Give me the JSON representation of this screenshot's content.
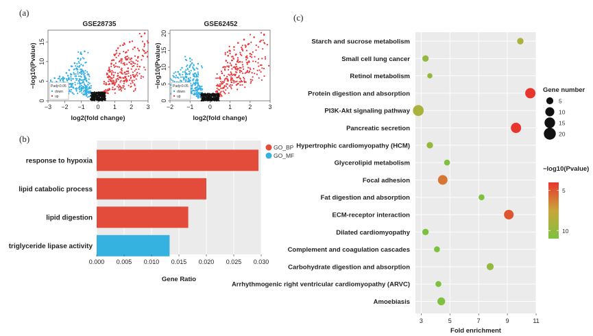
{
  "panel_labels": {
    "a": "(a)",
    "b": "(b)",
    "c": "(c)"
  },
  "chart_data": [
    {
      "panel": "(a)",
      "type": "scatter",
      "title": "GSE28735",
      "xlabel": "log2(fold change)",
      "ylabel": "−log10(Pvalue)",
      "xlim": [
        -3,
        3
      ],
      "ylim": [
        0,
        18
      ],
      "xticks": [
        "−3",
        "−2",
        "−1",
        "0",
        "1",
        "2",
        "3"
      ],
      "yticks": [
        "0",
        "5",
        "10",
        "15"
      ],
      "legend": {
        "title": "Padj<0.05",
        "items": [
          "down",
          "up"
        ]
      },
      "series": [
        {
          "name": "down",
          "color": "#33aee4",
          "points": [
            [
              -2.3,
              6.2
            ],
            [
              -2.1,
              5.2
            ],
            [
              -2.6,
              5.8
            ],
            [
              -1.9,
              7.1
            ],
            [
              -1.8,
              6.4
            ],
            [
              -1.6,
              8.8
            ],
            [
              -1.4,
              9.6
            ],
            [
              -1.2,
              10.8
            ],
            [
              -1.3,
              8.2
            ],
            [
              -1.0,
              7.4
            ],
            [
              -0.9,
              9.0
            ],
            [
              -0.8,
              6.1
            ],
            [
              -0.7,
              5.2
            ],
            [
              -0.6,
              4.1
            ],
            [
              -0.5,
              3.2
            ],
            [
              -0.4,
              2.1
            ],
            [
              -1.1,
              4.6
            ],
            [
              -1.5,
              5.6
            ],
            [
              -0.9,
              3.6
            ],
            [
              -0.7,
              2.8
            ],
            [
              -1.7,
              4.3
            ],
            [
              -2.0,
              3.9
            ],
            [
              -0.6,
              6.8
            ],
            [
              -1.0,
              11.9
            ],
            [
              -0.8,
              12.6
            ]
          ]
        },
        {
          "name": "up",
          "color": "#e8373b",
          "points": [
            [
              0.4,
              2.5
            ],
            [
              0.5,
              4.2
            ],
            [
              0.6,
              6.0
            ],
            [
              0.7,
              7.8
            ],
            [
              0.8,
              9.5
            ],
            [
              0.9,
              10.4
            ],
            [
              1.0,
              11.6
            ],
            [
              1.1,
              12.8
            ],
            [
              1.2,
              13.4
            ],
            [
              1.3,
              12.0
            ],
            [
              1.4,
              10.6
            ],
            [
              1.5,
              14.2
            ],
            [
              1.6,
              9.2
            ],
            [
              1.7,
              12.4
            ],
            [
              1.8,
              8.3
            ],
            [
              1.9,
              15.0
            ],
            [
              2.0,
              10.8
            ],
            [
              2.2,
              13.6
            ],
            [
              2.4,
              11.2
            ],
            [
              2.6,
              16.4
            ],
            [
              2.8,
              17.2
            ],
            [
              3.0,
              14.8
            ],
            [
              1.2,
              6.4
            ],
            [
              0.9,
              5.1
            ],
            [
              1.6,
              7.2
            ],
            [
              2.1,
              6.6
            ]
          ]
        },
        {
          "name": "ns",
          "color": "#111111",
          "points": [
            [
              -0.35,
              0.8
            ],
            [
              -0.2,
              0.5
            ],
            [
              0.0,
              0.3
            ],
            [
              0.2,
              0.6
            ],
            [
              0.35,
              1.0
            ],
            [
              -0.1,
              1.2
            ],
            [
              0.1,
              1.4
            ],
            [
              -0.25,
              1.6
            ],
            [
              0.3,
              1.8
            ],
            [
              0.05,
              0.9
            ]
          ]
        }
      ]
    },
    {
      "panel": "(a)",
      "type": "scatter",
      "title": "GSE62452",
      "xlabel": "log2(fold change)",
      "ylabel": "−log10(Pvalue)",
      "xlim": [
        -2,
        3
      ],
      "ylim": [
        0,
        21
      ],
      "xticks": [
        "−2",
        "−1",
        "0",
        "1",
        "2",
        "3"
      ],
      "yticks": [
        "0",
        "5",
        "10",
        "15",
        "20"
      ],
      "legend": {
        "title": "Padj<0.05",
        "items": [
          "down",
          "up"
        ]
      },
      "series": [
        {
          "name": "down",
          "color": "#33aee4",
          "points": [
            [
              -1.8,
              7.1
            ],
            [
              -1.6,
              8.6
            ],
            [
              -1.4,
              9.8
            ],
            [
              -1.2,
              8.2
            ],
            [
              -1.0,
              10.4
            ],
            [
              -0.9,
              11.2
            ],
            [
              -0.8,
              7.6
            ],
            [
              -0.7,
              6.1
            ],
            [
              -0.6,
              5.0
            ],
            [
              -0.5,
              3.6
            ],
            [
              -0.4,
              2.4
            ],
            [
              -1.1,
              5.8
            ],
            [
              -1.3,
              6.6
            ],
            [
              -0.9,
              4.4
            ],
            [
              -0.7,
              3.2
            ],
            [
              -1.5,
              5.4
            ],
            [
              -1.7,
              4.8
            ],
            [
              -0.8,
              9.4
            ],
            [
              -1.0,
              12.6
            ],
            [
              -0.6,
              11.0
            ]
          ]
        },
        {
          "name": "up",
          "color": "#e8373b",
          "points": [
            [
              0.3,
              2.7
            ],
            [
              0.4,
              4.4
            ],
            [
              0.5,
              6.6
            ],
            [
              0.6,
              8.2
            ],
            [
              0.7,
              10.1
            ],
            [
              0.8,
              11.9
            ],
            [
              0.9,
              13.4
            ],
            [
              1.0,
              14.8
            ],
            [
              1.1,
              12.0
            ],
            [
              1.2,
              16.0
            ],
            [
              1.3,
              13.8
            ],
            [
              1.4,
              17.2
            ],
            [
              1.5,
              11.6
            ],
            [
              1.6,
              15.4
            ],
            [
              1.7,
              18.2
            ],
            [
              1.8,
              13.0
            ],
            [
              1.9,
              16.8
            ],
            [
              2.0,
              14.0
            ],
            [
              2.2,
              18.9
            ],
            [
              2.5,
              17.6
            ],
            [
              2.7,
              19.6
            ],
            [
              1.2,
              7.8
            ],
            [
              0.9,
              6.0
            ],
            [
              1.5,
              9.0
            ]
          ]
        },
        {
          "name": "ns",
          "color": "#111111",
          "points": [
            [
              -0.3,
              0.8
            ],
            [
              -0.15,
              0.5
            ],
            [
              0.0,
              0.3
            ],
            [
              0.15,
              0.6
            ],
            [
              0.3,
              1.1
            ],
            [
              -0.05,
              1.3
            ],
            [
              0.1,
              1.6
            ],
            [
              -0.2,
              1.8
            ],
            [
              0.25,
              2.0
            ],
            [
              0.05,
              1.0
            ]
          ]
        }
      ]
    },
    {
      "panel": "(b)",
      "type": "bar",
      "orientation": "horizontal",
      "xlabel": "Gene Ratio",
      "xlim": [
        0,
        0.03
      ],
      "xticks": [
        "0.000",
        "0.005",
        "0.010",
        "0.015",
        "0.020",
        "0.025",
        "0.030"
      ],
      "categories": [
        "response to hypoxia",
        "lipid catabolic process",
        "lipid digestion",
        "triglyceride lipase activity"
      ],
      "values": [
        0.0295,
        0.02,
        0.0167,
        0.0133
      ],
      "groups": [
        "GO_BP",
        "GO_BP",
        "GO_BP",
        "GO_MF"
      ],
      "legend": [
        {
          "name": "GO_BP",
          "color": "#e34b3b"
        },
        {
          "name": "GO_MF",
          "color": "#35b2e0"
        }
      ],
      "legend_position": "top-right"
    },
    {
      "panel": "(c)",
      "type": "scatter",
      "xlabel": "Fold enrichment",
      "xlim": [
        2.6,
        11
      ],
      "xticks": [
        "3",
        "5",
        "7",
        "9",
        "11"
      ],
      "categories": [
        "Starch and sucrose metabolism",
        "Small cell lung cancer",
        "Retinol metabolism",
        "Protein digestion and absorption",
        "PI3K-Akt signaling pathway",
        "Pancreatic secretion",
        "Hypertrophic cardiomyopathy (HCM)",
        "Glycerolipid metabolism",
        "Focal adhesion",
        "Fat digestion and absorption",
        "ECM-receptor interaction",
        "Dilated cardiomyopathy",
        "Complement and coagulation cascades",
        "Carbohydrate digestion and absorption",
        "Arrhythmogenic right ventricular cardiomyopathy (ARVC)",
        "Amoebiasis"
      ],
      "fold_enrichment": [
        9.9,
        3.3,
        3.6,
        10.6,
        2.8,
        9.6,
        3.6,
        4.8,
        4.5,
        7.2,
        9.1,
        3.3,
        4.1,
        7.8,
        4.2,
        4.4
      ],
      "gene_number": [
        4,
        4,
        2,
        14,
        16,
        14,
        4,
        3,
        12,
        3,
        12,
        4,
        3,
        5,
        3,
        7
      ],
      "neg_log10_pvalue": [
        9,
        10,
        10,
        4,
        9,
        4,
        10,
        11,
        6,
        11,
        5,
        11,
        11,
        10,
        11,
        11
      ],
      "size_legend": {
        "title": "Gene number",
        "labels": [
          "5",
          "10",
          "15",
          "20"
        ],
        "values": [
          5,
          10,
          15,
          20
        ]
      },
      "color_legend": {
        "title": "−log10(Pvalue)",
        "labels": [
          "5",
          "10"
        ],
        "values": [
          5,
          10
        ],
        "low_color": "#e8352e",
        "high_color": "#7ec13f"
      }
    }
  ]
}
